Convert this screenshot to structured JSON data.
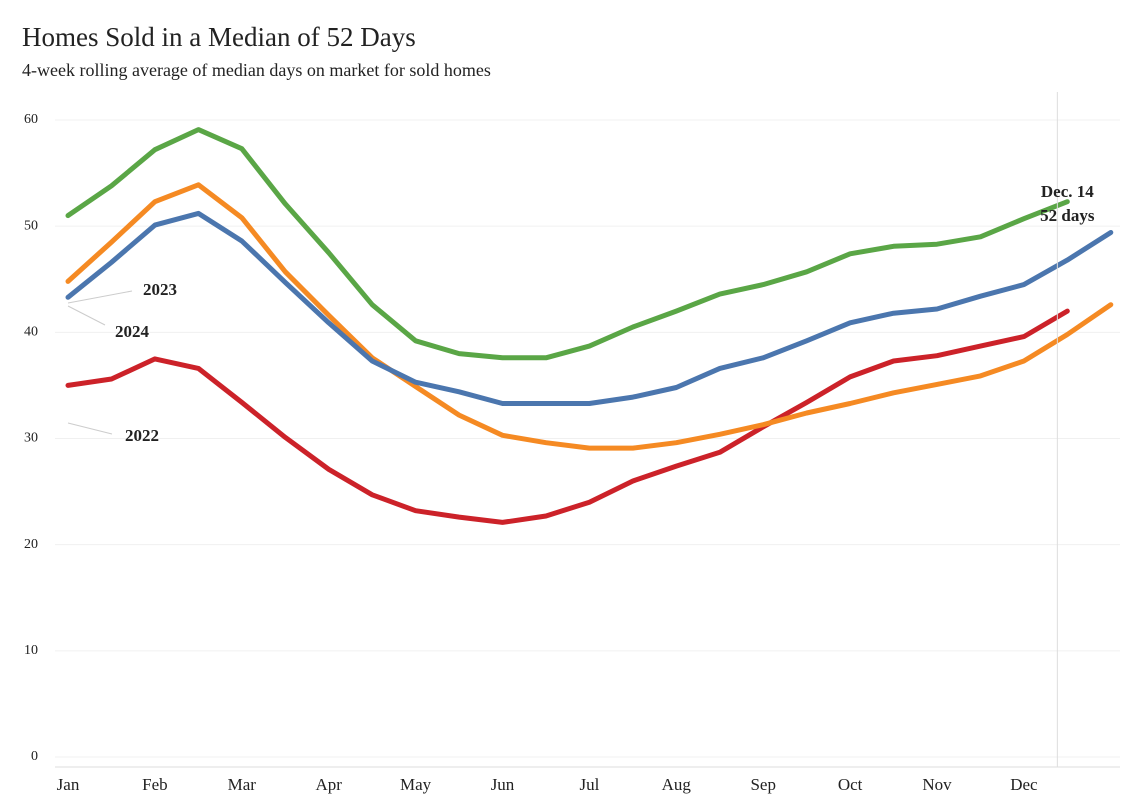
{
  "chart_data": {
    "type": "line",
    "title": "Homes Sold in a Median of 52 Days",
    "subtitle": "4-week rolling average of median days on market for sold homes",
    "categories": [
      "Jan",
      null,
      "Feb",
      null,
      "Mar",
      null,
      "Apr",
      null,
      "May",
      null,
      "Jun",
      null,
      "Jul",
      null,
      "Aug",
      null,
      "Sep",
      null,
      "Oct",
      null,
      "Nov",
      null,
      "Dec",
      null,
      null
    ],
    "ylim": [
      0,
      60
    ],
    "yticks": [
      0,
      10,
      20,
      30,
      40,
      50,
      60
    ],
    "grid": true,
    "series": [
      {
        "name": "2022",
        "color": "#cc2229",
        "values": [
          35.0,
          35.6,
          37.5,
          36.6,
          33.4,
          30.1,
          27.1,
          24.7,
          23.2,
          22.6,
          22.1,
          22.7,
          24.0,
          26.0,
          27.4,
          28.7,
          31.1,
          33.4,
          35.8,
          37.3,
          37.8,
          38.7,
          39.6,
          42.0,
          null
        ]
      },
      {
        "name": "2023",
        "color": "#f58a23",
        "values": [
          44.8,
          48.5,
          52.3,
          53.9,
          50.8,
          45.7,
          41.6,
          37.6,
          34.9,
          32.2,
          30.3,
          29.6,
          29.1,
          29.1,
          29.6,
          30.4,
          31.3,
          32.4,
          33.3,
          34.3,
          35.1,
          35.9,
          37.3,
          39.8,
          42.6
        ]
      },
      {
        "name": "2024",
        "color": "#4b76ae",
        "values": [
          43.3,
          46.6,
          50.1,
          51.2,
          48.6,
          44.7,
          40.9,
          37.3,
          35.3,
          34.4,
          33.3,
          33.3,
          33.3,
          33.9,
          34.8,
          36.6,
          37.6,
          39.2,
          40.9,
          41.8,
          42.2,
          43.4,
          44.5,
          46.8,
          49.4
        ]
      },
      {
        "color": "#5aa646",
        "values": [
          51.0,
          53.8,
          57.2,
          59.1,
          57.3,
          52.1,
          47.5,
          42.6,
          39.2,
          38.0,
          37.6,
          37.6,
          38.7,
          40.5,
          42.0,
          43.6,
          44.5,
          45.7,
          47.4,
          48.1,
          48.3,
          49.0,
          50.7,
          52.3,
          null
        ]
      }
    ],
    "annotation": {
      "lines": [
        "Dec. 14",
        "52 days"
      ],
      "color": "#5aa646"
    }
  }
}
